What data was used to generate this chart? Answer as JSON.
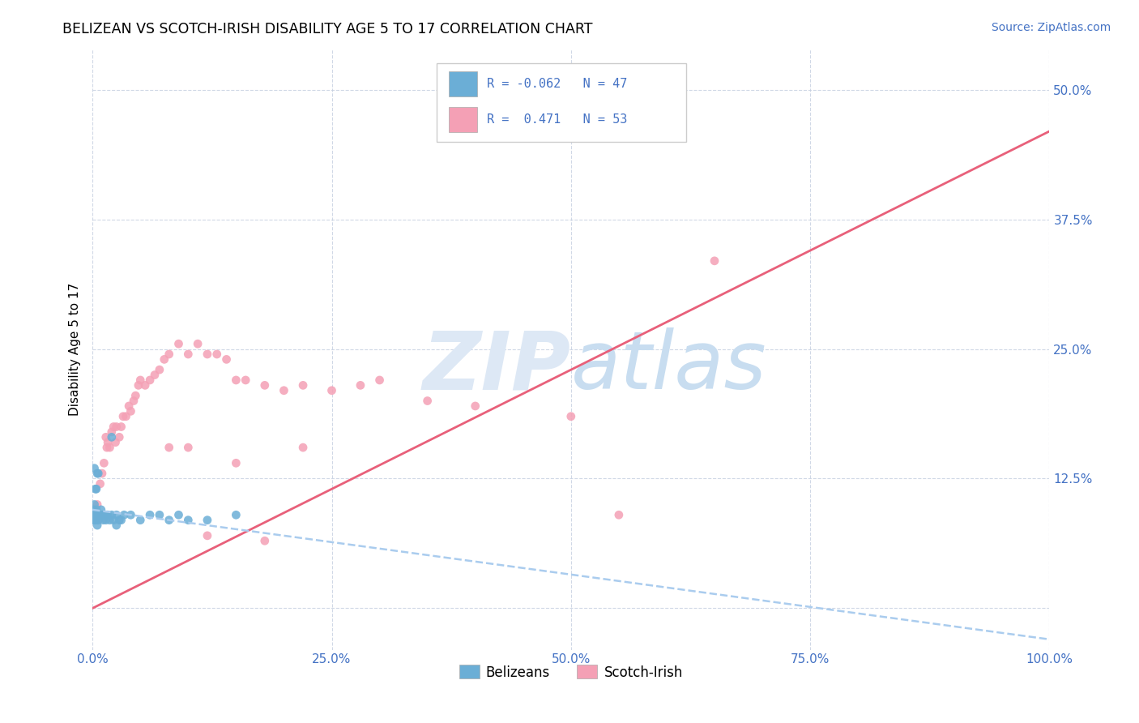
{
  "title": "BELIZEAN VS SCOTCH-IRISH DISABILITY AGE 5 TO 17 CORRELATION CHART",
  "source": "Source: ZipAtlas.com",
  "ylabel": "Disability Age 5 to 17",
  "xmin": 0.0,
  "xmax": 1.0,
  "ymin": -0.04,
  "ymax": 0.54,
  "xticks": [
    0.0,
    0.25,
    0.5,
    0.75,
    1.0
  ],
  "xticklabels": [
    "0.0%",
    "25.0%",
    "50.0%",
    "75.0%",
    "100.0%"
  ],
  "yticks": [
    0.0,
    0.125,
    0.25,
    0.375,
    0.5
  ],
  "yticklabels": [
    "",
    "12.5%",
    "25.0%",
    "37.5%",
    "50.0%"
  ],
  "belizean_color": "#6baed6",
  "scotch_irish_color": "#f4a0b5",
  "trendline_belizean_color": "#aaccee",
  "trendline_scotch_color": "#e8607a",
  "watermark_color": "#dde8f5",
  "r_belizean": -0.062,
  "n_belizean": 47,
  "r_scotch": 0.471,
  "n_scotch": 53,
  "scotch_trendline_x0": 0.0,
  "scotch_trendline_y0": 0.0,
  "scotch_trendline_x1": 1.0,
  "scotch_trendline_y1": 0.46,
  "belizean_trendline_x0": 0.0,
  "belizean_trendline_y0": 0.095,
  "belizean_trendline_x1": 1.0,
  "belizean_trendline_y1": -0.03,
  "scotch_x": [
    0.005,
    0.008,
    0.01,
    0.012,
    0.014,
    0.015,
    0.016,
    0.018,
    0.02,
    0.022,
    0.024,
    0.025,
    0.028,
    0.03,
    0.032,
    0.035,
    0.038,
    0.04,
    0.043,
    0.045,
    0.048,
    0.05,
    0.055,
    0.06,
    0.065,
    0.07,
    0.075,
    0.08,
    0.09,
    0.1,
    0.11,
    0.12,
    0.13,
    0.14,
    0.15,
    0.16,
    0.18,
    0.2,
    0.22,
    0.25,
    0.28,
    0.3,
    0.15,
    0.22,
    0.35,
    0.4,
    0.5,
    0.55,
    0.1,
    0.08,
    0.65,
    0.18,
    0.12
  ],
  "scotch_y": [
    0.1,
    0.12,
    0.13,
    0.14,
    0.165,
    0.155,
    0.16,
    0.155,
    0.17,
    0.175,
    0.16,
    0.175,
    0.165,
    0.175,
    0.185,
    0.185,
    0.195,
    0.19,
    0.2,
    0.205,
    0.215,
    0.22,
    0.215,
    0.22,
    0.225,
    0.23,
    0.24,
    0.245,
    0.255,
    0.245,
    0.255,
    0.245,
    0.245,
    0.24,
    0.22,
    0.22,
    0.215,
    0.21,
    0.215,
    0.21,
    0.215,
    0.22,
    0.14,
    0.155,
    0.2,
    0.195,
    0.185,
    0.09,
    0.155,
    0.155,
    0.335,
    0.065,
    0.07
  ],
  "belizean_x": [
    0.0005,
    0.001,
    0.001,
    0.0015,
    0.002,
    0.002,
    0.003,
    0.003,
    0.004,
    0.004,
    0.005,
    0.005,
    0.006,
    0.006,
    0.007,
    0.008,
    0.009,
    0.01,
    0.011,
    0.012,
    0.013,
    0.014,
    0.015,
    0.016,
    0.018,
    0.02,
    0.022,
    0.025,
    0.028,
    0.03,
    0.033,
    0.04,
    0.05,
    0.06,
    0.07,
    0.08,
    0.09,
    0.1,
    0.12,
    0.15,
    0.002,
    0.003,
    0.004,
    0.005,
    0.006,
    0.02,
    0.025
  ],
  "belizean_y": [
    0.09,
    0.085,
    0.095,
    0.09,
    0.085,
    0.1,
    0.085,
    0.09,
    0.09,
    0.095,
    0.08,
    0.09,
    0.085,
    0.09,
    0.09,
    0.09,
    0.095,
    0.09,
    0.085,
    0.09,
    0.09,
    0.085,
    0.09,
    0.09,
    0.085,
    0.09,
    0.085,
    0.09,
    0.085,
    0.085,
    0.09,
    0.09,
    0.085,
    0.09,
    0.09,
    0.085,
    0.09,
    0.085,
    0.085,
    0.09,
    0.135,
    0.115,
    0.115,
    0.13,
    0.13,
    0.165,
    0.08
  ]
}
